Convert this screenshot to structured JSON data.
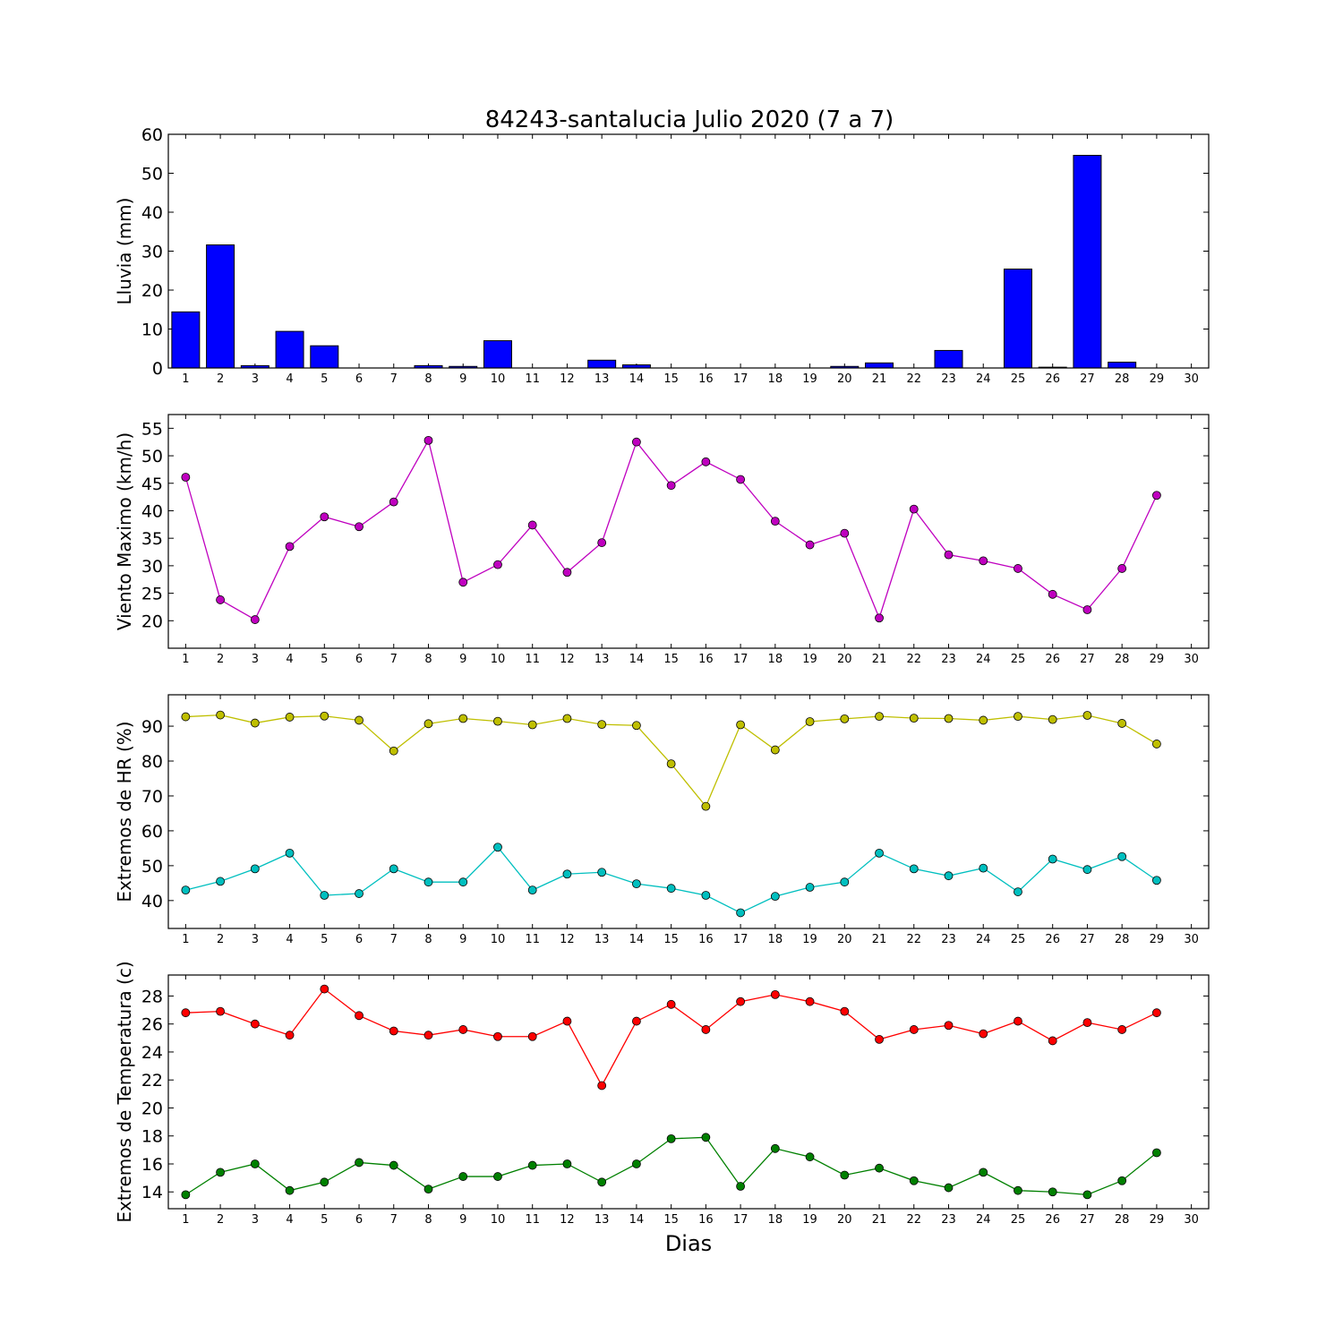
{
  "title": "84243-santalucia Julio 2020  (7 a 7)",
  "xlabel": "Dias",
  "chart_data": [
    {
      "type": "bar",
      "ylabel": "Lluvia (mm)",
      "ylim": [
        0,
        60
      ],
      "yticks": [
        0,
        10,
        20,
        30,
        40,
        50,
        60
      ],
      "xticks": [
        1,
        2,
        3,
        4,
        5,
        6,
        7,
        8,
        9,
        10,
        11,
        12,
        13,
        14,
        15,
        16,
        17,
        18,
        19,
        20,
        21,
        22,
        23,
        24,
        25,
        26,
        27,
        28,
        29,
        30
      ],
      "x": [
        1,
        2,
        3,
        4,
        5,
        6,
        7,
        8,
        9,
        10,
        11,
        12,
        13,
        14,
        15,
        16,
        17,
        18,
        19,
        20,
        21,
        22,
        23,
        24,
        25,
        26,
        27,
        28,
        29
      ],
      "series": [
        {
          "color": "#0000ff",
          "values": [
            14.4,
            31.6,
            0.6,
            9.4,
            5.7,
            0,
            0,
            0.6,
            0.4,
            7.0,
            0,
            0,
            2.0,
            0.8,
            0,
            0,
            0,
            0,
            0,
            0.4,
            1.3,
            0,
            4.5,
            0,
            25.4,
            0.2,
            54.6,
            1.5,
            0
          ]
        }
      ]
    },
    {
      "type": "line",
      "ylabel": "Viento Maximo (km/h)",
      "ylim": [
        15,
        57.5
      ],
      "yticks": [
        20,
        25,
        30,
        35,
        40,
        45,
        50,
        55
      ],
      "xticks": [
        1,
        2,
        3,
        4,
        5,
        6,
        7,
        8,
        9,
        10,
        11,
        12,
        13,
        14,
        15,
        16,
        17,
        18,
        19,
        20,
        21,
        22,
        23,
        24,
        25,
        26,
        27,
        28,
        29,
        30
      ],
      "x": [
        1,
        2,
        3,
        4,
        5,
        6,
        7,
        8,
        9,
        10,
        11,
        12,
        13,
        14,
        15,
        16,
        17,
        18,
        19,
        20,
        21,
        22,
        23,
        24,
        25,
        26,
        27,
        28,
        29
      ],
      "series": [
        {
          "color": "#bf00bf",
          "values": [
            46.1,
            23.8,
            20.2,
            33.5,
            38.9,
            37.1,
            41.6,
            52.8,
            27.0,
            30.2,
            37.4,
            28.8,
            34.2,
            52.5,
            44.6,
            48.9,
            45.7,
            38.1,
            33.8,
            35.9,
            20.5,
            40.3,
            32.0,
            30.9,
            29.5,
            24.8,
            22.0,
            29.5,
            42.8
          ]
        }
      ]
    },
    {
      "type": "line",
      "ylabel": "Extremos de HR (%)",
      "ylim": [
        32,
        99
      ],
      "yticks": [
        40,
        50,
        60,
        70,
        80,
        90
      ],
      "xticks": [
        1,
        2,
        3,
        4,
        5,
        6,
        7,
        8,
        9,
        10,
        11,
        12,
        13,
        14,
        15,
        16,
        17,
        18,
        19,
        20,
        21,
        22,
        23,
        24,
        25,
        26,
        27,
        28,
        29,
        30
      ],
      "x": [
        1,
        2,
        3,
        4,
        5,
        6,
        7,
        8,
        9,
        10,
        11,
        12,
        13,
        14,
        15,
        16,
        17,
        18,
        19,
        20,
        21,
        22,
        23,
        24,
        25,
        26,
        27,
        28,
        29
      ],
      "series": [
        {
          "color": "#bfbf00",
          "values": [
            92.7,
            93.2,
            90.9,
            92.6,
            92.9,
            91.7,
            82.9,
            90.7,
            92.2,
            91.4,
            90.4,
            92.2,
            90.5,
            90.2,
            79.2,
            67.0,
            90.4,
            83.2,
            91.3,
            92.1,
            92.8,
            92.3,
            92.2,
            91.7,
            92.8,
            91.9,
            93.1,
            90.8,
            84.9
          ]
        },
        {
          "color": "#00bfbf",
          "values": [
            43.0,
            45.5,
            49.1,
            53.6,
            41.5,
            42.0,
            49.1,
            45.3,
            45.3,
            55.3,
            43.0,
            47.6,
            48.1,
            44.8,
            43.5,
            41.5,
            36.5,
            41.2,
            43.8,
            45.3,
            53.6,
            49.1,
            47.1,
            49.3,
            42.5,
            51.9,
            48.9,
            52.6,
            45.8
          ]
        }
      ]
    },
    {
      "type": "line",
      "ylabel": "Extremos de Temperatura (c)",
      "ylim": [
        12.8,
        29.5
      ],
      "yticks": [
        14,
        16,
        18,
        20,
        22,
        24,
        26,
        28
      ],
      "xticks": [
        1,
        2,
        3,
        4,
        5,
        6,
        7,
        8,
        9,
        10,
        11,
        12,
        13,
        14,
        15,
        16,
        17,
        18,
        19,
        20,
        21,
        22,
        23,
        24,
        25,
        26,
        27,
        28,
        29,
        30
      ],
      "x": [
        1,
        2,
        3,
        4,
        5,
        6,
        7,
        8,
        9,
        10,
        11,
        12,
        13,
        14,
        15,
        16,
        17,
        18,
        19,
        20,
        21,
        22,
        23,
        24,
        25,
        26,
        27,
        28,
        29
      ],
      "series": [
        {
          "color": "#ff0000",
          "values": [
            26.8,
            26.9,
            26.0,
            25.2,
            28.5,
            26.6,
            25.5,
            25.2,
            25.6,
            25.1,
            25.1,
            26.2,
            21.6,
            26.2,
            27.4,
            25.6,
            27.6,
            28.1,
            27.6,
            26.9,
            24.9,
            25.6,
            25.9,
            25.3,
            26.2,
            24.8,
            26.1,
            25.6,
            26.8
          ]
        },
        {
          "color": "#008000",
          "values": [
            13.8,
            15.4,
            16.0,
            14.1,
            14.7,
            16.1,
            15.9,
            14.2,
            15.1,
            15.1,
            15.9,
            16.0,
            14.7,
            16.0,
            17.8,
            17.9,
            14.4,
            17.1,
            16.5,
            15.2,
            15.7,
            14.8,
            14.3,
            15.4,
            14.1,
            14.0,
            13.8,
            14.8,
            16.8
          ]
        }
      ]
    }
  ]
}
